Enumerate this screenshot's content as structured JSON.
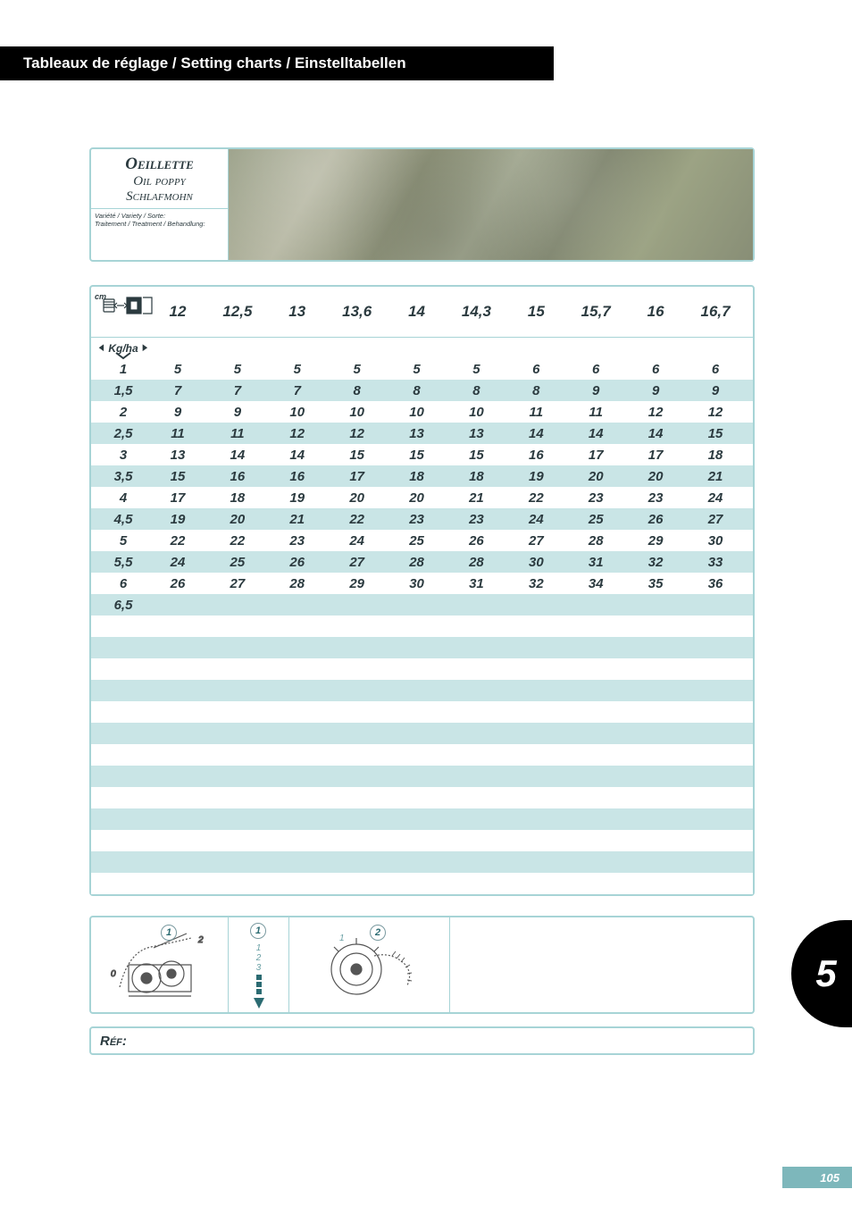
{
  "header": {
    "title": "Tableaux de réglage / Setting charts / Einstelltabellen"
  },
  "crop": {
    "name_fr": "Oeillette",
    "name_en": "Oil poppy",
    "name_de": "Schlafmohn",
    "variety_label": "Variété / Variety / Sorte:",
    "treatment_label": "Traitement / Treatment / Behandlung:"
  },
  "table": {
    "corner_cm": "cm",
    "kgha_label": "Kg/ha",
    "columns": [
      "12",
      "12,5",
      "13",
      "13,6",
      "14",
      "14,3",
      "15",
      "15,7",
      "16",
      "16,7"
    ],
    "rows": [
      {
        "label": "1",
        "cells": [
          "5",
          "5",
          "5",
          "5",
          "5",
          "5",
          "6",
          "6",
          "6",
          "6"
        ]
      },
      {
        "label": "1,5",
        "cells": [
          "7",
          "7",
          "7",
          "8",
          "8",
          "8",
          "8",
          "9",
          "9",
          "9"
        ]
      },
      {
        "label": "2",
        "cells": [
          "9",
          "9",
          "10",
          "10",
          "10",
          "10",
          "11",
          "11",
          "12",
          "12"
        ]
      },
      {
        "label": "2,5",
        "cells": [
          "11",
          "11",
          "12",
          "12",
          "13",
          "13",
          "14",
          "14",
          "14",
          "15"
        ]
      },
      {
        "label": "3",
        "cells": [
          "13",
          "14",
          "14",
          "15",
          "15",
          "15",
          "16",
          "17",
          "17",
          "18"
        ]
      },
      {
        "label": "3,5",
        "cells": [
          "15",
          "16",
          "16",
          "17",
          "18",
          "18",
          "19",
          "20",
          "20",
          "21"
        ]
      },
      {
        "label": "4",
        "cells": [
          "17",
          "18",
          "19",
          "20",
          "20",
          "21",
          "22",
          "23",
          "23",
          "24"
        ]
      },
      {
        "label": "4,5",
        "cells": [
          "19",
          "20",
          "21",
          "22",
          "23",
          "23",
          "24",
          "25",
          "26",
          "27"
        ]
      },
      {
        "label": "5",
        "cells": [
          "22",
          "22",
          "23",
          "24",
          "25",
          "26",
          "27",
          "28",
          "29",
          "30"
        ]
      },
      {
        "label": "5,5",
        "cells": [
          "24",
          "25",
          "26",
          "27",
          "28",
          "28",
          "30",
          "31",
          "32",
          "33"
        ]
      },
      {
        "label": "6",
        "cells": [
          "26",
          "27",
          "28",
          "29",
          "30",
          "31",
          "32",
          "34",
          "35",
          "36"
        ]
      },
      {
        "label": "6,5",
        "cells": [
          "",
          "",
          "",
          "",
          "",
          "",
          "",
          "",
          "",
          ""
        ]
      }
    ],
    "empty_rows": 13,
    "row_colors": {
      "odd": "#c9e5e6",
      "even": "#ffffff"
    },
    "border_color": "#a7d4d6",
    "text_color": "#2b3a3f",
    "header_fontsize": 17,
    "cell_fontsize": 15
  },
  "footer_diagrams": {
    "badge1_value": "1",
    "badge1_axis_labels": [
      "0",
      "2"
    ],
    "badge2_marks": [
      "1",
      "2",
      "3"
    ],
    "badge2_circle": "1",
    "badge3_circle": "2",
    "badge3_axis_label": "1"
  },
  "ref": {
    "label": "Réf:"
  },
  "side_tab": {
    "number": "5"
  },
  "page": {
    "number": "105"
  },
  "colors": {
    "teal_border": "#a7d4d6",
    "teal_fill": "#c9e5e6",
    "teal_pagebox": "#7db7bb",
    "text_dark": "#2b3a3f",
    "black": "#000000",
    "white": "#ffffff"
  }
}
